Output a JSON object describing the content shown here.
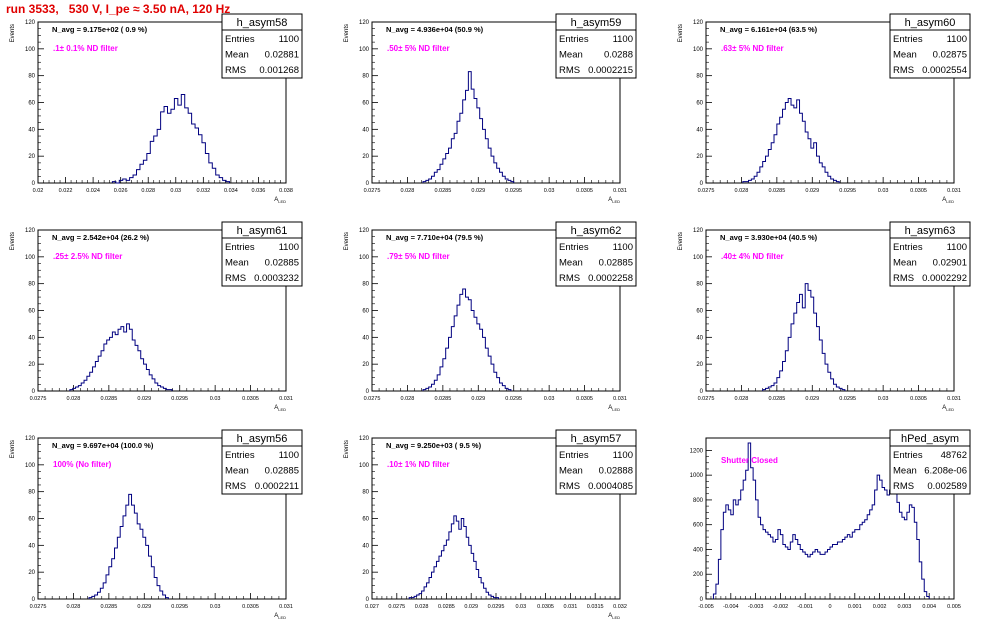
{
  "run_title": "run 3533,   530 V, I_pe ≈ 3.50 nA, 120 Hz",
  "colors": {
    "hist": "#000080",
    "title": "#e00000",
    "label": "#ff00ff"
  },
  "chart_data": [
    {
      "type": "histogram",
      "name": "h_asym58",
      "ylabel": "Events",
      "xlabel": "A_{LED}",
      "navg": "N_avg = 9.175e+02 ( 0.9 %)",
      "filter": ".1± 0.1% ND filter",
      "stats": {
        "Entries": "1100",
        "Mean": "0.02881",
        "RMS": "0.001268"
      },
      "xlim": [
        0.02,
        0.038
      ],
      "ylim": [
        0,
        120
      ],
      "xticks": [
        0.02,
        0.022,
        0.024,
        0.026,
        0.028,
        0.03,
        0.032,
        0.034,
        0.036,
        0.038
      ],
      "xtick_labels": [
        "0.02",
        "0.022",
        "0.024",
        "0.026",
        "0.028",
        "0.03",
        "0.032",
        "0.034",
        "0.036",
        "0.038"
      ],
      "yticks": [
        0,
        20,
        40,
        60,
        80,
        100,
        120
      ],
      "xmin": 0.0254,
      "bin_width": 0.00025,
      "counts": [
        1,
        0,
        2,
        3,
        2,
        4,
        6,
        10,
        14,
        17,
        22,
        31,
        35,
        40,
        53,
        57,
        52,
        55,
        63,
        58,
        66,
        56,
        52,
        44,
        41,
        36,
        30,
        22,
        15,
        11,
        6,
        4,
        2,
        1
      ]
    },
    {
      "type": "histogram",
      "name": "h_asym59",
      "ylabel": "Events",
      "xlabel": "A_{LED}",
      "navg": "N_avg = 4.936e+04 (50.9 %)",
      "filter": ".50± 5% ND filter",
      "stats": {
        "Entries": "1100",
        "Mean": "0.0288",
        "RMS": "0.0002215"
      },
      "xlim": [
        0.0275,
        0.031
      ],
      "ylim": [
        0,
        120
      ],
      "xticks": [
        0.0275,
        0.028,
        0.0285,
        0.029,
        0.0295,
        0.03,
        0.0305,
        0.031
      ],
      "xtick_labels": [
        "0.0275",
        "0.028",
        "0.0285",
        "0.029",
        "0.0295",
        "0.03",
        "0.0305",
        "0.031"
      ],
      "yticks": [
        0,
        20,
        40,
        60,
        80,
        100,
        120
      ],
      "xmin": 0.02822,
      "bin_width": 4e-05,
      "counts": [
        1,
        2,
        3,
        5,
        8,
        10,
        14,
        18,
        22,
        26,
        33,
        37,
        46,
        52,
        62,
        69,
        83,
        70,
        63,
        56,
        48,
        40,
        33,
        26,
        20,
        15,
        11,
        8,
        5,
        3,
        2,
        1
      ]
    },
    {
      "type": "histogram",
      "name": "h_asym60",
      "ylabel": "Events",
      "xlabel": "A_{LED}",
      "navg": "N_avg = 6.161e+04 (63.5 %)",
      "filter": ".63± 5% ND filter",
      "stats": {
        "Entries": "1100",
        "Mean": "0.02875",
        "RMS": "0.0002554"
      },
      "xlim": [
        0.0275,
        0.031
      ],
      "ylim": [
        0,
        120
      ],
      "xticks": [
        0.0275,
        0.028,
        0.0285,
        0.029,
        0.0295,
        0.03,
        0.0305,
        0.031
      ],
      "xtick_labels": [
        "0.0275",
        "0.028",
        "0.0285",
        "0.029",
        "0.0295",
        "0.03",
        "0.0305",
        "0.031"
      ],
      "yticks": [
        0,
        20,
        40,
        60,
        80,
        100,
        120
      ],
      "xmin": 0.02802,
      "bin_width": 4e-05,
      "counts": [
        1,
        1,
        2,
        3,
        5,
        8,
        12,
        16,
        20,
        25,
        30,
        36,
        44,
        49,
        55,
        60,
        63,
        58,
        56,
        62,
        52,
        46,
        38,
        33,
        26,
        30,
        20,
        15,
        12,
        8,
        5,
        3,
        2,
        1
      ]
    },
    {
      "type": "histogram",
      "name": "h_asym61",
      "ylabel": "Events",
      "xlabel": "A_{LED}",
      "navg": "N_avg = 2.542e+04 (26.2 %)",
      "filter": ".25± 2.5% ND filter",
      "stats": {
        "Entries": "1100",
        "Mean": "0.02885",
        "RMS": "0.0003232"
      },
      "xlim": [
        0.0275,
        0.031
      ],
      "ylim": [
        0,
        120
      ],
      "xticks": [
        0.0275,
        0.028,
        0.0285,
        0.029,
        0.0295,
        0.03,
        0.0305,
        0.031
      ],
      "xtick_labels": [
        "0.0275",
        "0.028",
        "0.0285",
        "0.029",
        "0.0295",
        "0.03",
        "0.0305",
        "0.031"
      ],
      "yticks": [
        0,
        20,
        40,
        60,
        80,
        100,
        120
      ],
      "xmin": 0.02795,
      "bin_width": 4e-05,
      "counts": [
        1,
        2,
        3,
        4,
        6,
        8,
        11,
        14,
        18,
        22,
        26,
        30,
        35,
        38,
        40,
        44,
        42,
        46,
        48,
        44,
        50,
        46,
        38,
        34,
        30,
        24,
        20,
        16,
        12,
        9,
        6,
        4,
        3,
        2,
        1,
        1
      ]
    },
    {
      "type": "histogram",
      "name": "h_asym62",
      "ylabel": "Events",
      "xlabel": "A_{LED}",
      "navg": "N_avg = 7.710e+04 (79.5 %)",
      "filter": ".79± 5% ND filter",
      "stats": {
        "Entries": "1100",
        "Mean": "0.02885",
        "RMS": "0.0002258"
      },
      "xlim": [
        0.0275,
        0.031
      ],
      "ylim": [
        0,
        120
      ],
      "xticks": [
        0.0275,
        0.028,
        0.0285,
        0.029,
        0.0295,
        0.03,
        0.0305,
        0.031
      ],
      "xtick_labels": [
        "0.0275",
        "0.028",
        "0.0285",
        "0.029",
        "0.0295",
        "0.03",
        "0.0305",
        "0.031"
      ],
      "yticks": [
        0,
        20,
        40,
        60,
        80,
        100,
        120
      ],
      "xmin": 0.02822,
      "bin_width": 4e-05,
      "counts": [
        1,
        2,
        3,
        5,
        8,
        12,
        18,
        24,
        32,
        40,
        48,
        56,
        64,
        72,
        76,
        70,
        68,
        60,
        55,
        50,
        46,
        40,
        32,
        26,
        20,
        14,
        10,
        6,
        4,
        2,
        1
      ]
    },
    {
      "type": "histogram",
      "name": "h_asym63",
      "ylabel": "Events",
      "xlabel": "A_{LED}",
      "navg": "N_avg = 3.930e+04 (40.5 %)",
      "filter": ".40± 4% ND filter",
      "stats": {
        "Entries": "1100",
        "Mean": "0.02901",
        "RMS": "0.0002292"
      },
      "xlim": [
        0.0275,
        0.031
      ],
      "ylim": [
        0,
        120
      ],
      "xticks": [
        0.0275,
        0.028,
        0.0285,
        0.029,
        0.0295,
        0.03,
        0.0305,
        0.031
      ],
      "xtick_labels": [
        "0.0275",
        "0.028",
        "0.0285",
        "0.029",
        "0.0295",
        "0.03",
        "0.0305",
        "0.031"
      ],
      "yticks": [
        0,
        20,
        40,
        60,
        80,
        100,
        120
      ],
      "xmin": 0.0283,
      "bin_width": 4e-05,
      "counts": [
        1,
        2,
        3,
        4,
        6,
        10,
        15,
        22,
        30,
        40,
        50,
        58,
        66,
        72,
        62,
        80,
        75,
        70,
        58,
        48,
        38,
        28,
        20,
        14,
        9,
        5,
        3,
        2,
        1
      ]
    },
    {
      "type": "histogram",
      "name": "h_asym56",
      "ylabel": "Events",
      "xlabel": "A_{LED}",
      "navg": "N_avg = 9.697e+04 (100.0 %)",
      "filter": "100% (No filter)",
      "stats": {
        "Entries": "1100",
        "Mean": "0.02885",
        "RMS": "0.0002211"
      },
      "xlim": [
        0.0275,
        0.031
      ],
      "ylim": [
        0,
        120
      ],
      "xticks": [
        0.0275,
        0.028,
        0.0285,
        0.029,
        0.0295,
        0.03,
        0.0305,
        0.031
      ],
      "xtick_labels": [
        "0.0275",
        "0.028",
        "0.0285",
        "0.029",
        "0.0295",
        "0.03",
        "0.0305",
        "0.031"
      ],
      "yticks": [
        0,
        20,
        40,
        60,
        80,
        100,
        120
      ],
      "xmin": 0.02822,
      "bin_width": 4e-05,
      "counts": [
        1,
        2,
        3,
        5,
        8,
        12,
        18,
        24,
        30,
        38,
        46,
        54,
        62,
        70,
        78,
        70,
        64,
        56,
        52,
        46,
        40,
        32,
        24,
        16,
        10,
        6,
        3,
        1
      ]
    },
    {
      "type": "histogram",
      "name": "h_asym57",
      "ylabel": "Events",
      "xlabel": "A_{LED}",
      "navg": "N_avg = 9.250e+03 ( 9.5 %)",
      "filter": ".10± 1% ND filter",
      "stats": {
        "Entries": "1100",
        "Mean": "0.02888",
        "RMS": "0.0004085"
      },
      "xlim": [
        0.027,
        0.032
      ],
      "ylim": [
        0,
        120
      ],
      "xticks": [
        0.027,
        0.0275,
        0.028,
        0.0285,
        0.029,
        0.0295,
        0.03,
        0.0305,
        0.031,
        0.0315,
        0.032
      ],
      "xtick_labels": [
        "0.027",
        "0.0275",
        "0.028",
        "0.0285",
        "0.029",
        "0.0295",
        "0.03",
        "0.0305",
        "0.031",
        "0.0315",
        "0.032"
      ],
      "yticks": [
        0,
        20,
        40,
        60,
        80,
        100,
        120
      ],
      "xmin": 0.02775,
      "bin_width": 5e-05,
      "counts": [
        1,
        1,
        2,
        3,
        4,
        6,
        9,
        12,
        16,
        20,
        24,
        28,
        32,
        36,
        40,
        44,
        50,
        56,
        62,
        58,
        52,
        60,
        54,
        46,
        40,
        34,
        28,
        22,
        16,
        12,
        8,
        5,
        3,
        2,
        1,
        1
      ]
    },
    {
      "type": "histogram",
      "name": "hPed_asym",
      "ylabel": "",
      "xlabel": "",
      "navg": "",
      "filter": "Shutter Closed",
      "stats": {
        "Entries": "48762",
        "Mean": "6.208e-06",
        "RMS": "0.002589"
      },
      "xlim": [
        -0.005,
        0.005
      ],
      "ylim": [
        0,
        1300
      ],
      "xticks": [
        -0.005,
        -0.004,
        -0.003,
        -0.002,
        -0.001,
        0,
        0.001,
        0.002,
        0.003,
        0.004,
        0.005
      ],
      "xtick_labels": [
        "-0.005",
        "-0.004",
        "-0.003",
        "-0.002",
        "-0.001",
        "0",
        "0.001",
        "0.002",
        "0.003",
        "0.004",
        "0.005"
      ],
      "yticks": [
        0,
        200,
        400,
        600,
        800,
        1000,
        1200
      ],
      "xmin": -0.0047,
      "bin_width": 0.0001,
      "counts": [
        40,
        120,
        320,
        560,
        700,
        760,
        720,
        680,
        800,
        760,
        800,
        880,
        960,
        1040,
        1260,
        1060,
        960,
        800,
        660,
        600,
        560,
        540,
        520,
        500,
        460,
        480,
        560,
        520,
        440,
        420,
        400,
        460,
        520,
        480,
        440,
        400,
        380,
        360,
        340,
        360,
        380,
        400,
        380,
        360,
        360,
        380,
        400,
        420,
        440,
        440,
        460,
        460,
        480,
        500,
        520,
        500,
        540,
        560,
        560,
        600,
        620,
        640,
        680,
        720,
        760,
        880,
        1000,
        960,
        900,
        880,
        840,
        880,
        920,
        860,
        780,
        700,
        660,
        640,
        700,
        760,
        740,
        620,
        480,
        300,
        160,
        60,
        20
      ]
    }
  ]
}
